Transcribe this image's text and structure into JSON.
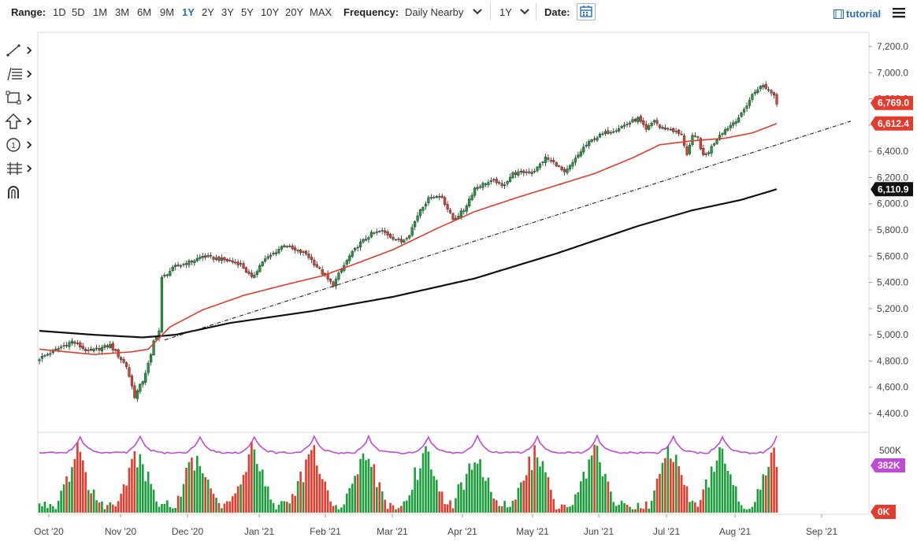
{
  "toolbar": {
    "range_label": "Range:",
    "ranges": [
      "1D",
      "5D",
      "1M",
      "3M",
      "6M",
      "9M",
      "1Y",
      "2Y",
      "3Y",
      "5Y",
      "10Y",
      "20Y",
      "MAX"
    ],
    "active_range": "1Y",
    "frequency_label": "Frequency:",
    "frequency_value": "Daily Nearby",
    "period_value": "1Y",
    "date_label": "Date:",
    "tutorial_label": "tutorial"
  },
  "left_tools": [
    {
      "icon": "line-tool-icon"
    },
    {
      "icon": "fibonacci-tool-icon"
    },
    {
      "icon": "rectangle-tool-icon"
    },
    {
      "icon": "arrow-tool-icon"
    },
    {
      "icon": "annotation-number-icon"
    },
    {
      "icon": "measure-tool-icon"
    },
    {
      "icon": "magnet-icon"
    }
  ],
  "chart_data": {
    "type": "candlestick",
    "x_labels": [
      "Oct '20",
      "Nov '20",
      "Dec '20",
      "Jan '21",
      "Feb '21",
      "Mar '21",
      "Apr '21",
      "May '21",
      "Jun '21",
      "Jul '21",
      "Aug '21",
      "Sep '21"
    ],
    "price_ticks": [
      "7,200.0",
      "7,000.0",
      "6,800.0",
      "6,600.0",
      "6,400.0",
      "6,200.0",
      "6,000.0",
      "5,800.0",
      "5,600.0",
      "5,400.0",
      "5,200.0",
      "5,000.0",
      "4,800.0",
      "4,600.0",
      "4,400.0"
    ],
    "ylim": [
      4300,
      7300
    ],
    "last_price": "6,769.0",
    "ma_red_value": "6,612.4",
    "ma_black_value": "6,110.9",
    "volume_ticks": [
      "500K",
      "0K"
    ],
    "volume_last": "382K",
    "colors": {
      "up": "#1a9e3a",
      "down": "#e53b2c",
      "ma_short": "#e53b2c",
      "ma_long": "#111111",
      "osc": "#c04ad6",
      "trend": "#222222",
      "last_tag": "#e53b2c",
      "ma_tag": "#e53b2c",
      "black_tag": "#111111",
      "volume_tag": "#c04ad6"
    },
    "close_anchors": [
      [
        0,
        4820
      ],
      [
        12,
        4950
      ],
      [
        18,
        4870
      ],
      [
        26,
        4920
      ],
      [
        32,
        4760
      ],
      [
        35,
        4530
      ],
      [
        38,
        4650
      ],
      [
        41,
        4840
      ],
      [
        42,
        4950
      ],
      [
        44,
        5030
      ],
      [
        45,
        5430
      ],
      [
        47,
        5470
      ],
      [
        50,
        5520
      ],
      [
        56,
        5560
      ],
      [
        60,
        5600
      ],
      [
        68,
        5570
      ],
      [
        74,
        5540
      ],
      [
        78,
        5430
      ],
      [
        82,
        5560
      ],
      [
        86,
        5620
      ],
      [
        90,
        5690
      ],
      [
        94,
        5640
      ],
      [
        98,
        5620
      ],
      [
        102,
        5520
      ],
      [
        106,
        5420
      ],
      [
        108,
        5380
      ],
      [
        110,
        5460
      ],
      [
        114,
        5600
      ],
      [
        118,
        5700
      ],
      [
        122,
        5770
      ],
      [
        126,
        5790
      ],
      [
        130,
        5740
      ],
      [
        133,
        5710
      ],
      [
        136,
        5770
      ],
      [
        140,
        5960
      ],
      [
        144,
        6060
      ],
      [
        148,
        6050
      ],
      [
        150,
        5960
      ],
      [
        152,
        5880
      ],
      [
        156,
        5950
      ],
      [
        160,
        6120
      ],
      [
        164,
        6160
      ],
      [
        168,
        6170
      ],
      [
        170,
        6130
      ],
      [
        174,
        6230
      ],
      [
        178,
        6240
      ],
      [
        182,
        6250
      ],
      [
        186,
        6350
      ],
      [
        190,
        6300
      ],
      [
        193,
        6230
      ],
      [
        196,
        6310
      ],
      [
        200,
        6430
      ],
      [
        204,
        6500
      ],
      [
        208,
        6540
      ],
      [
        212,
        6570
      ],
      [
        216,
        6610
      ],
      [
        220,
        6650
      ],
      [
        223,
        6560
      ],
      [
        226,
        6640
      ],
      [
        228,
        6580
      ],
      [
        232,
        6570
      ],
      [
        236,
        6520
      ],
      [
        238,
        6380
      ],
      [
        240,
        6510
      ],
      [
        242,
        6500
      ],
      [
        244,
        6360
      ],
      [
        246,
        6400
      ],
      [
        250,
        6530
      ],
      [
        254,
        6600
      ],
      [
        258,
        6680
      ],
      [
        262,
        6830
      ],
      [
        264,
        6880
      ],
      [
        266,
        6900
      ],
      [
        268,
        6870
      ],
      [
        270,
        6830
      ],
      [
        271,
        6769
      ]
    ],
    "ma_short_anchors": [
      [
        0,
        4890
      ],
      [
        20,
        4850
      ],
      [
        34,
        4870
      ],
      [
        40,
        4890
      ],
      [
        48,
        5060
      ],
      [
        60,
        5190
      ],
      [
        75,
        5300
      ],
      [
        90,
        5380
      ],
      [
        104,
        5450
      ],
      [
        116,
        5540
      ],
      [
        130,
        5650
      ],
      [
        146,
        5810
      ],
      [
        160,
        5940
      ],
      [
        176,
        6050
      ],
      [
        190,
        6140
      ],
      [
        204,
        6230
      ],
      [
        218,
        6350
      ],
      [
        228,
        6450
      ],
      [
        240,
        6480
      ],
      [
        252,
        6500
      ],
      [
        262,
        6540
      ],
      [
        271,
        6612
      ]
    ],
    "ma_long_anchors": [
      [
        0,
        5030
      ],
      [
        20,
        5000
      ],
      [
        38,
        4980
      ],
      [
        50,
        5000
      ],
      [
        70,
        5090
      ],
      [
        100,
        5180
      ],
      [
        130,
        5290
      ],
      [
        160,
        5430
      ],
      [
        190,
        5620
      ],
      [
        220,
        5830
      ],
      [
        240,
        5950
      ],
      [
        258,
        6030
      ],
      [
        271,
        6111
      ]
    ],
    "trendline": {
      "x1": 46,
      "y1": 4960,
      "x2": 300,
      "y2": 6630
    },
    "volume_spikes": [
      14,
      36,
      58,
      78,
      100,
      120,
      142,
      160,
      182,
      204,
      232,
      250,
      270
    ]
  }
}
